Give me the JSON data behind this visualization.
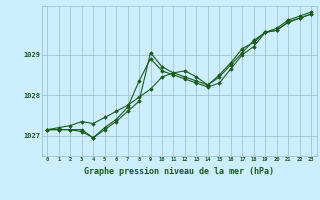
{
  "xlabel": "Graphe pression niveau de la mer (hPa)",
  "background_color": "#cceeff",
  "grid_color": "#99bbcc",
  "line_color": "#1a5c1a",
  "ylim": [
    1026.5,
    1030.2
  ],
  "xlim": [
    -0.5,
    23.5
  ],
  "yticks": [
    1027,
    1028,
    1029
  ],
  "xticks": [
    0,
    1,
    2,
    3,
    4,
    5,
    6,
    7,
    8,
    9,
    10,
    11,
    12,
    13,
    14,
    15,
    16,
    17,
    18,
    19,
    20,
    21,
    22,
    23
  ],
  "series1": [
    1027.15,
    1027.15,
    1027.15,
    1027.15,
    1026.95,
    1027.15,
    1027.35,
    1027.6,
    1027.85,
    1029.05,
    1028.7,
    1028.55,
    1028.45,
    1028.35,
    1028.25,
    1028.45,
    1028.75,
    1029.05,
    1029.35,
    1029.55,
    1029.65,
    1029.85,
    1029.95,
    1030.05
  ],
  "series2": [
    1027.15,
    1027.15,
    1027.15,
    1027.1,
    1026.95,
    1027.2,
    1027.4,
    1027.7,
    1028.35,
    1028.9,
    1028.6,
    1028.5,
    1028.4,
    1028.3,
    1028.2,
    1028.3,
    1028.65,
    1029.0,
    1029.2,
    1029.55,
    1029.6,
    1029.8,
    1029.9,
    1030.0
  ],
  "series3": [
    1027.15,
    1027.2,
    1027.25,
    1027.35,
    1027.3,
    1027.45,
    1027.6,
    1027.75,
    1027.95,
    1028.15,
    1028.45,
    1028.55,
    1028.6,
    1028.45,
    1028.25,
    1028.5,
    1028.8,
    1029.15,
    1029.3,
    1029.55,
    1029.6,
    1029.8,
    1029.9,
    1030.0
  ]
}
